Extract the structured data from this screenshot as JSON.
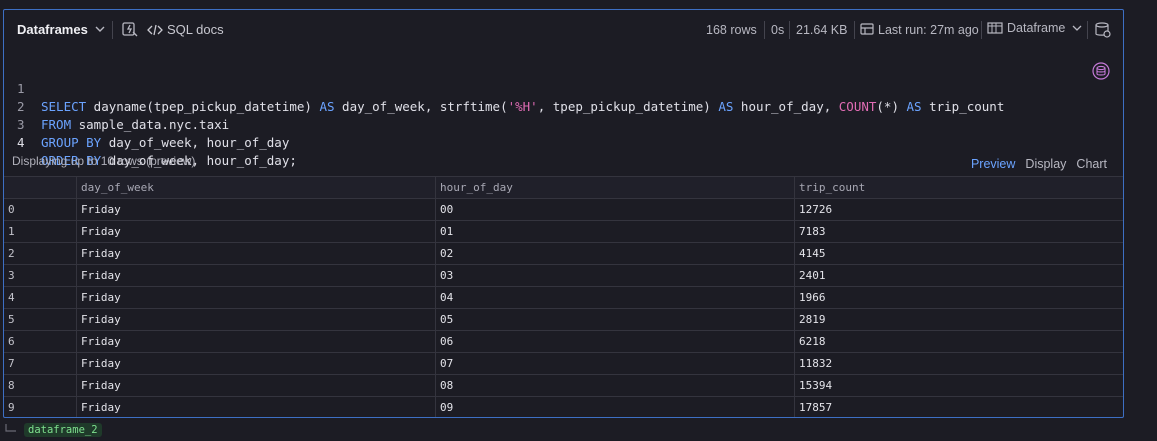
{
  "header": {
    "title": "Dataframes",
    "sql_docs_label": "SQL docs",
    "rows": "168 rows",
    "duration": "0s",
    "size": "21.64 KB",
    "last_run": "Last run: 27m ago",
    "output_type": "Dataframe"
  },
  "editor": {
    "lines": [
      {
        "num": "1"
      },
      {
        "num": "2"
      },
      {
        "num": "3"
      },
      {
        "num": "4"
      }
    ],
    "line1": {
      "kw_select": "SELECT",
      "p1": " dayname(tpep_pickup_datetime) ",
      "kw_as1": "AS",
      "p2": " day_of_week, strftime(",
      "str1": "'%H'",
      "p3": ", tpep_pickup_datetime) ",
      "kw_as2": "AS",
      "p4": " hour_of_day, ",
      "fn_count": "COUNT",
      "p5": "(*) ",
      "kw_as3": "AS",
      "p6": " trip_count"
    },
    "line2": {
      "kw_from": "FROM",
      "p1": " sample_data.nyc.taxi"
    },
    "line3": {
      "kw_group": "GROUP BY",
      "p1": " day_of_week, hour_of_day"
    },
    "line4": {
      "kw_order": "ORDER BY",
      "p1": " day_of_week, hour_of_day;"
    }
  },
  "preview": {
    "label": "Displaying up to 10 rows (preview)",
    "tabs": [
      "Preview",
      "Display",
      "Chart"
    ],
    "active_tab": "Preview"
  },
  "table": {
    "columns": [
      "day_of_week",
      "hour_of_day",
      "trip_count"
    ],
    "rows": [
      {
        "idx": "0",
        "day_of_week": "Friday",
        "hour_of_day": "00",
        "trip_count": "12726"
      },
      {
        "idx": "1",
        "day_of_week": "Friday",
        "hour_of_day": "01",
        "trip_count": "7183"
      },
      {
        "idx": "2",
        "day_of_week": "Friday",
        "hour_of_day": "02",
        "trip_count": "4145"
      },
      {
        "idx": "3",
        "day_of_week": "Friday",
        "hour_of_day": "03",
        "trip_count": "2401"
      },
      {
        "idx": "4",
        "day_of_week": "Friday",
        "hour_of_day": "04",
        "trip_count": "1966"
      },
      {
        "idx": "5",
        "day_of_week": "Friday",
        "hour_of_day": "05",
        "trip_count": "2819"
      },
      {
        "idx": "6",
        "day_of_week": "Friday",
        "hour_of_day": "06",
        "trip_count": "6218"
      },
      {
        "idx": "7",
        "day_of_week": "Friday",
        "hour_of_day": "07",
        "trip_count": "11832"
      },
      {
        "idx": "8",
        "day_of_week": "Friday",
        "hour_of_day": "08",
        "trip_count": "15394"
      },
      {
        "idx": "9",
        "day_of_week": "Friday",
        "hour_of_day": "09",
        "trip_count": "17857"
      }
    ]
  },
  "footer": {
    "output_name": "dataframe_2"
  },
  "colors": {
    "accent": "#6ba3ff",
    "keyword": "#6ba3ff",
    "function": "#e06cb4",
    "frame_border": "#3d6fc4",
    "badge_text": "#7ee08e"
  },
  "icons": [
    "chevron-down-icon",
    "run-settings-icon",
    "code-icon",
    "table-icon",
    "dataframe-icon",
    "database-settings-icon",
    "database-icon",
    "output-arrow-icon"
  ]
}
